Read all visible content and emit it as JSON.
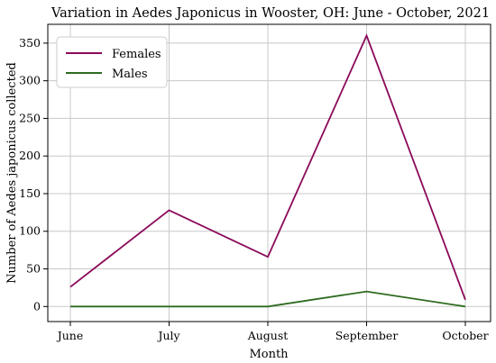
{
  "chart_data": {
    "type": "line",
    "title": "Variation in Aedes Japonicus in Wooster, OH: June - October, 2021",
    "xlabel": "Month",
    "ylabel": "Number of Aedes japonicus collected",
    "categories": [
      "June",
      "July",
      "August",
      "September",
      "October"
    ],
    "ylim": [
      -20,
      375
    ],
    "yticks": [
      0,
      50,
      100,
      150,
      200,
      250,
      300,
      350
    ],
    "grid": true,
    "legend_position": "top-left",
    "series": [
      {
        "name": "Females",
        "color": "#8b0a5a",
        "values": [
          26,
          128,
          66,
          360,
          9
        ]
      },
      {
        "name": "Males",
        "color": "#2e6b1f",
        "values": [
          0,
          0,
          0,
          20,
          0
        ]
      }
    ]
  }
}
